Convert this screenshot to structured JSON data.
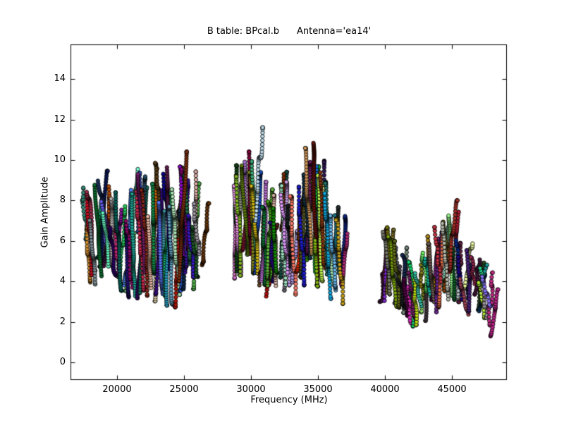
{
  "figure": {
    "title": "B table: BPcal.b      Antenna='ea14'",
    "xlabel": "Frequency (MHz)",
    "ylabel": "Gain Amplitude",
    "background_color": "#ffffff",
    "axis_color": "#000000"
  },
  "chart_data": {
    "type": "scatter",
    "title": "B table: BPcal.b      Antenna='ea14'",
    "xlabel": "Frequency (MHz)",
    "ylabel": "Gain Amplitude",
    "xlim": [
      16526,
      49104
    ],
    "ylim": [
      -0.87,
      15.71
    ],
    "x_ticks": [
      20000,
      25000,
      30000,
      35000,
      40000,
      45000
    ],
    "y_ticks": [
      0,
      2,
      4,
      6,
      8,
      10,
      12,
      14
    ],
    "grid": false,
    "legend": "none",
    "tick_direction": "in",
    "tick_sides": [
      "left",
      "right",
      "top",
      "bottom"
    ],
    "marker": {
      "shape": "circle",
      "radius_px": 2.7,
      "edge_color": "#000000",
      "multicolor_fills": true
    },
    "description": "Bandpass gain-amplitude solutions vs frequency; many vertical strands of stacked circle markers (one strand per spectral window, one dot per channel), random colors, grouped in three receiver bands with gaps between.",
    "clusters": [
      {
        "name": "band-1",
        "freq_range": [
          17700,
          26500
        ],
        "amp_range": [
          2.6,
          10.4
        ],
        "n_strands": 60,
        "profile": [
          [
            17700,
            3.2,
            9.3
          ],
          [
            19000,
            3.8,
            9.5
          ],
          [
            20000,
            3.4,
            8.6
          ],
          [
            21000,
            3.0,
            9.9
          ],
          [
            22000,
            2.7,
            9.7
          ],
          [
            23000,
            3.0,
            10.2
          ],
          [
            24000,
            2.6,
            10.4
          ],
          [
            25000,
            3.0,
            10.3
          ],
          [
            26000,
            3.3,
            9.6
          ],
          [
            26500,
            4.0,
            8.6
          ]
        ]
      },
      {
        "name": "band-2",
        "freq_range": [
          28650,
          37000
        ],
        "amp_range": [
          2.8,
          11.6
        ],
        "n_strands": 58,
        "profile": [
          [
            28650,
            3.5,
            9.6
          ],
          [
            29500,
            4.2,
            10.0
          ],
          [
            30300,
            3.8,
            11.6
          ],
          [
            31000,
            3.3,
            9.0
          ],
          [
            32000,
            2.9,
            9.5
          ],
          [
            33000,
            3.4,
            9.8
          ],
          [
            34000,
            3.2,
            10.1
          ],
          [
            34900,
            3.4,
            11.1
          ],
          [
            35800,
            3.0,
            9.0
          ],
          [
            36400,
            3.0,
            8.0
          ],
          [
            37000,
            2.8,
            7.4
          ]
        ]
      },
      {
        "name": "band-3",
        "freq_range": [
          39600,
          48100
        ],
        "amp_range": [
          1.2,
          8.0
        ],
        "n_strands": 56,
        "profile": [
          [
            39600,
            2.6,
            6.6
          ],
          [
            40500,
            2.8,
            6.8
          ],
          [
            41200,
            2.4,
            6.0
          ],
          [
            42000,
            1.6,
            5.2
          ],
          [
            42700,
            1.5,
            4.6
          ],
          [
            43500,
            2.2,
            6.4
          ],
          [
            44300,
            2.5,
            7.0
          ],
          [
            44900,
            2.8,
            8.0
          ],
          [
            45600,
            2.4,
            6.6
          ],
          [
            46300,
            2.2,
            5.6
          ],
          [
            47000,
            2.4,
            5.2
          ],
          [
            47700,
            1.6,
            4.6
          ],
          [
            48100,
            1.2,
            4.0
          ]
        ]
      }
    ],
    "highlight_strands": [
      {
        "freq": 30300,
        "amp_low": 7.0,
        "amp_high": 11.6,
        "color": "#b9d9e8"
      },
      {
        "freq": 34900,
        "amp_low": 6.2,
        "amp_high": 11.1,
        "color": "#5e120c"
      },
      {
        "freq": 24600,
        "amp_low": 4.0,
        "amp_high": 10.4,
        "color": "#7a2f10"
      },
      {
        "freq": 44800,
        "amp_low": 4.2,
        "amp_high": 8.0,
        "color": "#a03028"
      },
      {
        "freq": 36900,
        "amp_low": 2.9,
        "amp_high": 7.2,
        "color": "#c8a018"
      },
      {
        "freq": 47900,
        "amp_low": 1.2,
        "amp_high": 3.6,
        "color": "#bb2288"
      }
    ],
    "seed": 1408
  }
}
